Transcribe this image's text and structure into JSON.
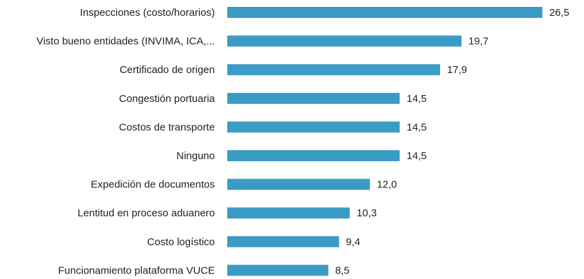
{
  "chart_data": {
    "type": "bar",
    "orientation": "horizontal",
    "categories": [
      "Inspecciones (costo/horarios)",
      "Visto bueno entidades (INVIMA, ICA,...",
      "Certificado de origen",
      "Congestión portuaria",
      "Costos de transporte",
      "Ninguno",
      "Expedición de documentos",
      "Lentitud en proceso aduanero",
      "Costo logístico",
      "Funcionamiento plataforma VUCE"
    ],
    "values": [
      26.5,
      19.7,
      17.9,
      14.5,
      14.5,
      14.5,
      12.0,
      10.3,
      9.4,
      8.5
    ],
    "value_labels": [
      "26,5",
      "19,7",
      "17,9",
      "14,5",
      "14,5",
      "14,5",
      "12,0",
      "10,3",
      "9,4",
      "8,5"
    ],
    "color": "#3a9cc4",
    "xlim": [
      0,
      30
    ]
  }
}
